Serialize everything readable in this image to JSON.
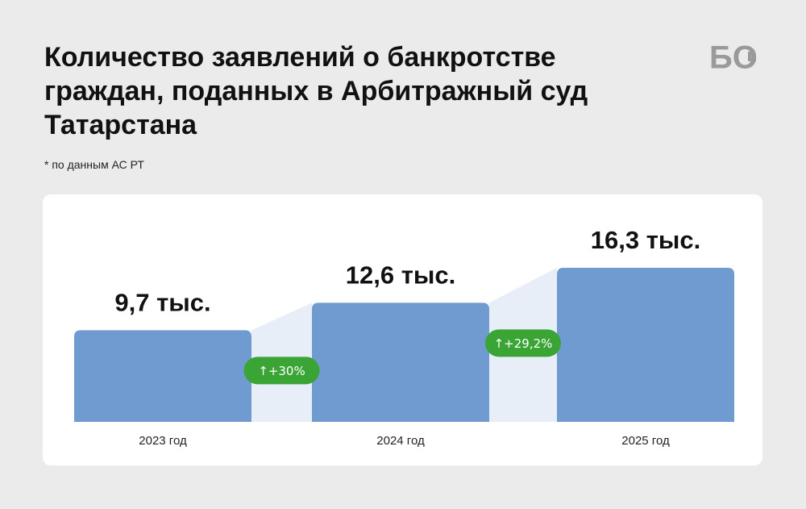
{
  "chart_data": {
    "type": "bar",
    "title": "Количество заявлений о банкротстве граждан, поданных в Арбитражный суд Татарстана",
    "subtitle": "* по данным АС РТ",
    "logo": "БО",
    "categories": [
      "2023 год",
      "2024 год",
      "2025 год"
    ],
    "values": [
      9.7,
      12.6,
      16.3
    ],
    "value_labels": [
      "9,7 тыс.",
      "12,6 тыс.",
      "16,3 тыс."
    ],
    "changes": [
      "↑+30%",
      "↑+29,2%"
    ],
    "color": "#6f9bd1",
    "change_color": "#3aa535"
  }
}
